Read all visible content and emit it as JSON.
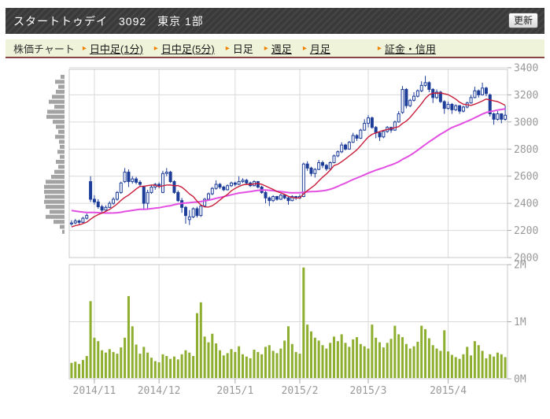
{
  "titlebar": {
    "name": "スタートトゥデイ",
    "code": "3092",
    "market": "東京 1部",
    "refresh_label": "更新"
  },
  "nav": {
    "items": [
      {
        "label": "株価チャート",
        "kind": "plain"
      },
      {
        "label": "日中足(1分)",
        "kind": "link"
      },
      {
        "label": "日中足(5分)",
        "kind": "link"
      },
      {
        "label": "日足",
        "kind": "current"
      },
      {
        "label": "週足",
        "kind": "link"
      },
      {
        "label": "月足",
        "kind": "link"
      },
      {
        "label": "証金・信用",
        "kind": "link"
      }
    ]
  },
  "chart_data": {
    "type": "candlestick+volume",
    "price_axis": {
      "ticks": [
        3400,
        3200,
        3000,
        2800,
        2600,
        2400,
        2200,
        2000
      ],
      "min": 2000,
      "max": 3400
    },
    "volume_axis": {
      "ticks": [
        {
          "v": 2,
          "label": "2M"
        },
        {
          "v": 1,
          "label": "1M"
        },
        {
          "v": 0,
          "label": "0M"
        }
      ],
      "unit": "millions"
    },
    "months": [
      {
        "label": "2014/11",
        "index": 6
      },
      {
        "label": "2014/12",
        "index": 23
      },
      {
        "label": "2015/1",
        "index": 43
      },
      {
        "label": "2015/2",
        "index": 60
      },
      {
        "label": "2015/3",
        "index": 78
      },
      {
        "label": "2015/4",
        "index": 99
      }
    ],
    "candles": [
      [
        2250,
        2275,
        2235,
        2255
      ],
      [
        2255,
        2285,
        2245,
        2270
      ],
      [
        2270,
        2280,
        2245,
        2260
      ],
      [
        2260,
        2300,
        2255,
        2290
      ],
      [
        2290,
        2325,
        2280,
        2310
      ],
      [
        2560,
        2600,
        2410,
        2430
      ],
      [
        2430,
        2460,
        2390,
        2410
      ],
      [
        2410,
        2430,
        2360,
        2375
      ],
      [
        2375,
        2390,
        2330,
        2350
      ],
      [
        2350,
        2385,
        2340,
        2370
      ],
      [
        2370,
        2415,
        2365,
        2400
      ],
      [
        2400,
        2445,
        2390,
        2430
      ],
      [
        2430,
        2490,
        2420,
        2480
      ],
      [
        2480,
        2560,
        2470,
        2550
      ],
      [
        2560,
        2660,
        2550,
        2630
      ],
      [
        2630,
        2650,
        2520,
        2560
      ],
      [
        2560,
        2600,
        2545,
        2580
      ],
      [
        2580,
        2595,
        2540,
        2555
      ],
      [
        2555,
        2570,
        2520,
        2540
      ],
      [
        2520,
        2530,
        2350,
        2400
      ],
      [
        2400,
        2500,
        2360,
        2480
      ],
      [
        2480,
        2535,
        2470,
        2520
      ],
      [
        2520,
        2550,
        2500,
        2540
      ],
      [
        2540,
        2555,
        2510,
        2530
      ],
      [
        2480,
        2640,
        2475,
        2620
      ],
      [
        2620,
        2660,
        2600,
        2630
      ],
      [
        2630,
        2640,
        2550,
        2560
      ],
      [
        2560,
        2570,
        2470,
        2480
      ],
      [
        2480,
        2495,
        2410,
        2420
      ],
      [
        2420,
        2440,
        2330,
        2370
      ],
      [
        2370,
        2380,
        2250,
        2310
      ],
      [
        2280,
        2350,
        2240,
        2300
      ],
      [
        2300,
        2370,
        2290,
        2360
      ],
      [
        2360,
        2375,
        2295,
        2310
      ],
      [
        2310,
        2390,
        2300,
        2380
      ],
      [
        2380,
        2440,
        2370,
        2430
      ],
      [
        2430,
        2480,
        2420,
        2470
      ],
      [
        2470,
        2520,
        2460,
        2510
      ],
      [
        2510,
        2570,
        2500,
        2540
      ],
      [
        2540,
        2550,
        2505,
        2520
      ],
      [
        2520,
        2530,
        2490,
        2500
      ],
      [
        2500,
        2540,
        2495,
        2530
      ],
      [
        2530,
        2560,
        2520,
        2550
      ],
      [
        2550,
        2560,
        2525,
        2540
      ],
      [
        2540,
        2600,
        2535,
        2560
      ],
      [
        2560,
        2585,
        2550,
        2570
      ],
      [
        2570,
        2580,
        2540,
        2550
      ],
      [
        2550,
        2560,
        2520,
        2530
      ],
      [
        2530,
        2570,
        2525,
        2560
      ],
      [
        2560,
        2565,
        2510,
        2520
      ],
      [
        2520,
        2530,
        2470,
        2480
      ],
      [
        2480,
        2490,
        2400,
        2440
      ],
      [
        2440,
        2450,
        2380,
        2420
      ],
      [
        2420,
        2460,
        2410,
        2450
      ],
      [
        2450,
        2455,
        2420,
        2430
      ],
      [
        2430,
        2470,
        2425,
        2460
      ],
      [
        2460,
        2465,
        2430,
        2440
      ],
      [
        2440,
        2450,
        2390,
        2420
      ],
      [
        2420,
        2460,
        2415,
        2450
      ],
      [
        2450,
        2455,
        2425,
        2440
      ],
      [
        2440,
        2465,
        2430,
        2450
      ],
      [
        2450,
        2700,
        2445,
        2690
      ],
      [
        2690,
        2710,
        2640,
        2660
      ],
      [
        2660,
        2670,
        2600,
        2620
      ],
      [
        2620,
        2660,
        2590,
        2650
      ],
      [
        2650,
        2720,
        2645,
        2700
      ],
      [
        2700,
        2715,
        2660,
        2680
      ],
      [
        2680,
        2690,
        2640,
        2655
      ],
      [
        2655,
        2710,
        2650,
        2700
      ],
      [
        2700,
        2760,
        2695,
        2750
      ],
      [
        2750,
        2790,
        2740,
        2780
      ],
      [
        2780,
        2850,
        2770,
        2830
      ],
      [
        2830,
        2840,
        2790,
        2800
      ],
      [
        2800,
        2860,
        2795,
        2850
      ],
      [
        2850,
        2920,
        2845,
        2900
      ],
      [
        2900,
        2910,
        2860,
        2880
      ],
      [
        2880,
        2950,
        2875,
        2940
      ],
      [
        2940,
        3020,
        2935,
        2990
      ],
      [
        2990,
        3050,
        2960,
        3030
      ],
      [
        3030,
        3040,
        2950,
        2960
      ],
      [
        2960,
        2970,
        2880,
        2920
      ],
      [
        2920,
        2930,
        2860,
        2890
      ],
      [
        2890,
        2940,
        2880,
        2930
      ],
      [
        2930,
        2970,
        2920,
        2960
      ],
      [
        2960,
        2965,
        2920,
        2940
      ],
      [
        2940,
        3010,
        2935,
        3000
      ],
      [
        3000,
        3080,
        2995,
        3060
      ],
      [
        3070,
        3265,
        3060,
        3240
      ],
      [
        3240,
        3250,
        3100,
        3120
      ],
      [
        3120,
        3170,
        3110,
        3160
      ],
      [
        3160,
        3220,
        3150,
        3190
      ],
      [
        3190,
        3240,
        3180,
        3230
      ],
      [
        3230,
        3300,
        3220,
        3270
      ],
      [
        3270,
        3340,
        3260,
        3290
      ],
      [
        3290,
        3300,
        3220,
        3240
      ],
      [
        3240,
        3250,
        3140,
        3180
      ],
      [
        3180,
        3240,
        3170,
        3220
      ],
      [
        3220,
        3230,
        3140,
        3150
      ],
      [
        3150,
        3160,
        3060,
        3100
      ],
      [
        3100,
        3150,
        3090,
        3130
      ],
      [
        3130,
        3140,
        3060,
        3090
      ],
      [
        3090,
        3130,
        3080,
        3120
      ],
      [
        3120,
        3125,
        3060,
        3080
      ],
      [
        3080,
        3120,
        3070,
        3110
      ],
      [
        3110,
        3150,
        3100,
        3140
      ],
      [
        3140,
        3200,
        3135,
        3180
      ],
      [
        3180,
        3260,
        3175,
        3230
      ],
      [
        3230,
        3240,
        3180,
        3200
      ],
      [
        3200,
        3290,
        3195,
        3250
      ],
      [
        3250,
        3260,
        3190,
        3210
      ],
      [
        3200,
        3210,
        3040,
        3060
      ],
      [
        3060,
        3070,
        2980,
        3020
      ],
      [
        3020,
        3080,
        3010,
        3060
      ],
      [
        3060,
        3065,
        2990,
        3020
      ],
      [
        3020,
        3120,
        3010,
        3050
      ]
    ],
    "volumes": [
      0.28,
      0.3,
      0.26,
      0.33,
      0.4,
      1.36,
      0.72,
      0.66,
      0.5,
      0.46,
      0.52,
      0.47,
      0.44,
      0.55,
      0.72,
      1.45,
      0.92,
      0.6,
      0.44,
      0.56,
      0.46,
      0.37,
      0.31,
      0.29,
      0.43,
      0.4,
      0.35,
      0.39,
      0.34,
      0.43,
      0.5,
      0.46,
      0.4,
      1.15,
      1.34,
      0.74,
      0.64,
      0.79,
      0.62,
      0.5,
      0.41,
      0.45,
      0.52,
      0.47,
      0.57,
      0.43,
      0.39,
      0.36,
      0.51,
      0.47,
      0.43,
      0.56,
      0.59,
      0.49,
      0.45,
      0.53,
      0.67,
      0.92,
      0.61,
      0.47,
      0.44,
      1.95,
      0.95,
      0.83,
      0.72,
      0.67,
      0.59,
      0.53,
      0.63,
      0.74,
      0.66,
      0.78,
      0.63,
      0.56,
      0.69,
      0.73,
      0.61,
      0.57,
      0.53,
      0.95,
      0.72,
      0.64,
      0.55,
      0.63,
      0.7,
      0.93,
      0.78,
      0.73,
      0.61,
      0.53,
      0.57,
      0.65,
      0.93,
      0.87,
      0.71,
      0.59,
      0.53,
      0.49,
      0.85,
      0.48,
      0.42,
      0.38,
      0.35,
      0.43,
      0.56,
      0.41,
      0.66,
      0.59,
      0.49,
      0.36,
      0.43,
      0.39,
      0.46,
      0.43,
      0.38
    ],
    "volume_profile": {
      "bar_lengths": [
        5,
        12,
        8,
        11,
        16,
        20,
        13,
        22,
        23,
        15,
        11,
        8,
        12,
        7,
        6,
        9,
        6,
        11,
        8,
        13,
        17,
        24,
        26,
        26,
        25,
        26,
        24,
        19,
        24,
        14,
        6,
        3
      ]
    },
    "ma": {
      "short_window": 9,
      "short_seed": [
        2190,
        2200,
        2210,
        2220,
        2230,
        2235,
        2245,
        2250
      ],
      "long_window": 40,
      "long_seed": [
        2430,
        2428,
        2426,
        2424,
        2422,
        2420,
        2418,
        2416,
        2414,
        2412,
        2410,
        2408,
        2406,
        2404,
        2402,
        2400,
        2400,
        2400,
        2400,
        2400,
        2400,
        2400,
        2400,
        2400,
        2400,
        2400,
        2180,
        2190,
        2200,
        2210,
        2220,
        2228,
        2236,
        2242,
        2248,
        2252,
        2254,
        2256,
        2258
      ]
    },
    "colors": {
      "candle": "#1d3d99",
      "candle_up_fill": "#ffffff",
      "ma_short": "#c81e3c",
      "ma_long": "#e24fe2",
      "volume_bar": "#8dae2e",
      "profile_bar": "#a3a3a3",
      "grid": "#d9d9d9",
      "border": "#c8c8c8",
      "axis_text": "#999999"
    }
  }
}
